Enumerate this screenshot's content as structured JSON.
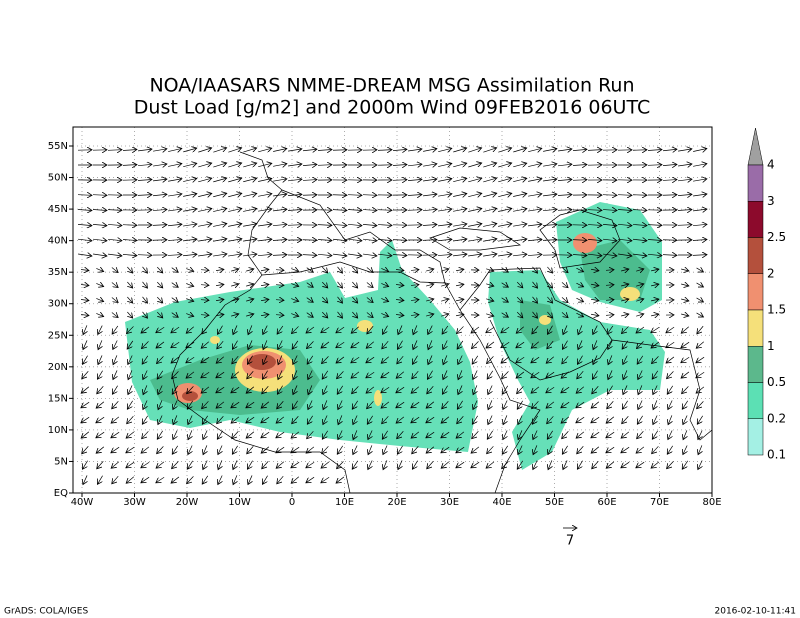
{
  "header": {
    "title": [
      "NOA/IAASARS NMME-DREAM MSG Assimilation Run",
      "Dust Load [g/m2] and 2000m Wind 09FEB2016 06UTC"
    ]
  },
  "axes": {
    "lon_labels": [
      "40W",
      "30W",
      "20W",
      "10W",
      "0",
      "10E",
      "20E",
      "30E",
      "40E",
      "50E",
      "60E",
      "70E",
      "80E"
    ],
    "lat_labels": [
      "EQ",
      "5N",
      "10N",
      "15N",
      "20N",
      "25N",
      "30N",
      "35N",
      "40N",
      "45N",
      "50N",
      "55N"
    ]
  },
  "colorbar": {
    "labels": [
      "4",
      "3",
      "2.5",
      "2",
      "1.5",
      "1",
      "0.5",
      "0.2",
      "0.1"
    ],
    "colors": [
      "#a0a0a0",
      "#9a6ca8",
      "#8c0a2c",
      "#b4503c",
      "#f09070",
      "#f5e07a",
      "#5cb88c",
      "#5ce0b4",
      "#a4f0e4"
    ]
  },
  "reference_vector": {
    "label": "7"
  },
  "footer": {
    "left": "GrADS: COLA/IGES",
    "right": "2016-02-10-11:41"
  }
}
